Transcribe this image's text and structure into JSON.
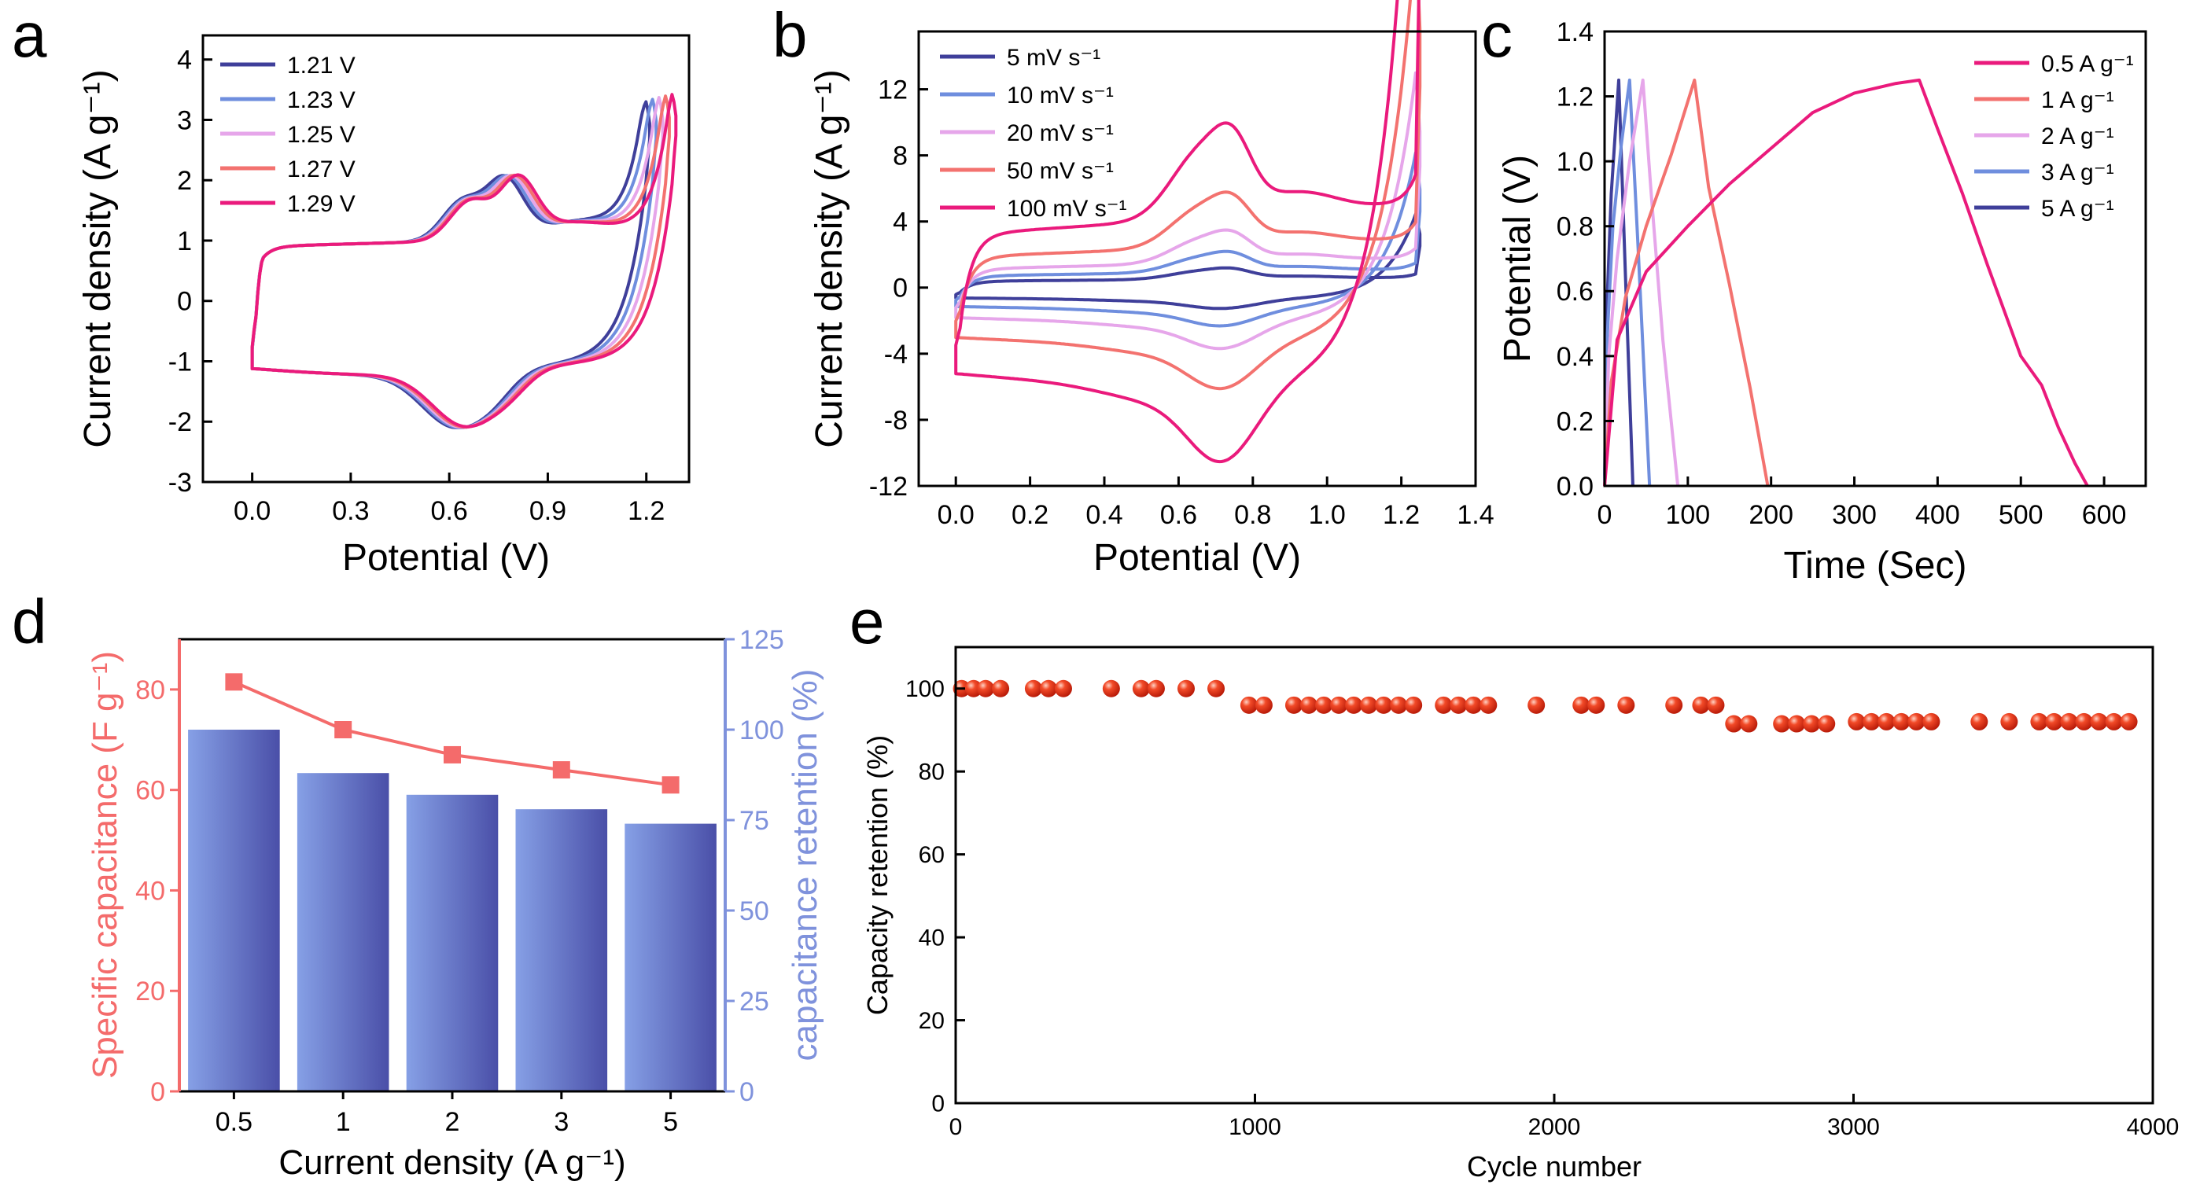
{
  "panel_labels": [
    "a",
    "b",
    "c",
    "d",
    "e"
  ],
  "colors": {
    "navy": "#3f3f9a",
    "blue": "#6f8ede",
    "lilac": "#e6a6ea",
    "salmon": "#f3726f",
    "magenta": "#ea1a7c",
    "bar_light": "#7e98e0",
    "bar_dark": "#4a4fa8",
    "cap_red": "#f46b6b",
    "ret_blue": "#7f92dc",
    "ball": "#e83a1e"
  },
  "chart_data": [
    {
      "id": "a",
      "type": "line",
      "title": "",
      "xlabel": "Potential (V)",
      "ylabel": "Current density (A g⁻¹)",
      "xlim": [
        -0.15,
        1.33
      ],
      "ylim": [
        -3,
        4.4
      ],
      "xticks": [
        "0.0",
        "0.3",
        "0.6",
        "0.9",
        "1.2"
      ],
      "xtick_values": [
        0,
        0.3,
        0.6,
        0.9,
        1.2
      ],
      "yticks": [
        "-3",
        "-2",
        "-1",
        "0",
        "1",
        "2",
        "3",
        "4"
      ],
      "ytick_values": [
        -3,
        -2,
        -1,
        0,
        1,
        2,
        3,
        4
      ],
      "legend_position": "top-left",
      "series": [
        {
          "name": "1.21 V",
          "vmax": 1.21,
          "color": "#3f3f9a"
        },
        {
          "name": "1.23 V",
          "vmax": 1.23,
          "color": "#6f8ede"
        },
        {
          "name": "1.25 V",
          "vmax": 1.25,
          "color": "#e6a6ea"
        },
        {
          "name": "1.27 V",
          "vmax": 1.27,
          "color": "#f3726f"
        },
        {
          "name": "1.29 V",
          "vmax": 1.29,
          "color": "#ea1a7c"
        }
      ]
    },
    {
      "id": "b",
      "type": "line",
      "title": "",
      "xlabel": "Potential (V)",
      "ylabel": "Current density (A g⁻¹)",
      "xlim": [
        -0.1,
        1.4
      ],
      "ylim": [
        -12,
        15.5
      ],
      "xticks": [
        "0.0",
        "0.2",
        "0.4",
        "0.6",
        "0.8",
        "1.0",
        "1.2",
        "1.4"
      ],
      "xtick_values": [
        0,
        0.2,
        0.4,
        0.6,
        0.8,
        1.0,
        1.2,
        1.4
      ],
      "yticks": [
        "-12",
        "-8",
        "-4",
        "0",
        "4",
        "8",
        "12"
      ],
      "ytick_values": [
        -12,
        -8,
        -4,
        0,
        4,
        8,
        12
      ],
      "legend_position": "top-left",
      "series": [
        {
          "name": "5 mV s⁻¹",
          "scale": 0.12,
          "color": "#3f3f9a"
        },
        {
          "name": "10 mV s⁻¹",
          "scale": 0.22,
          "color": "#6f8ede"
        },
        {
          "name": "20 mV s⁻¹",
          "scale": 0.35,
          "color": "#e6a6ea"
        },
        {
          "name": "50 mV s⁻¹",
          "scale": 0.58,
          "color": "#f3726f"
        },
        {
          "name": "100 mV s⁻¹",
          "scale": 1.0,
          "color": "#ea1a7c"
        }
      ]
    },
    {
      "id": "c",
      "type": "line",
      "title": "",
      "xlabel": "Time (Sec)",
      "ylabel": "Potential (V)",
      "xlim": [
        0,
        650
      ],
      "ylim": [
        0,
        1.4
      ],
      "xticks": [
        "0",
        "100",
        "200",
        "300",
        "400",
        "500",
        "600"
      ],
      "xtick_values": [
        0,
        100,
        200,
        300,
        400,
        500,
        600
      ],
      "yticks": [
        "0.0",
        "0.2",
        "0.4",
        "0.6",
        "0.8",
        "1.0",
        "1.2",
        "1.4"
      ],
      "ytick_values": [
        0,
        0.2,
        0.4,
        0.6,
        0.8,
        1.0,
        1.2,
        1.4
      ],
      "legend_position": "top-right",
      "series": [
        {
          "name": "0.5 A g⁻¹",
          "color": "#ea1a7c",
          "x": [
            0,
            15,
            50,
            100,
            150,
            200,
            250,
            300,
            350,
            378,
            400,
            430,
            460,
            500,
            525,
            545,
            565,
            580
          ],
          "y": [
            0,
            0.45,
            0.66,
            0.8,
            0.93,
            1.04,
            1.15,
            1.21,
            1.24,
            1.25,
            1.1,
            0.9,
            0.68,
            0.4,
            0.31,
            0.18,
            0.07,
            0
          ]
        },
        {
          "name": "1 A g⁻¹",
          "color": "#f3726f",
          "x": [
            0,
            8,
            25,
            50,
            80,
            108,
            125,
            150,
            175,
            196
          ],
          "y": [
            0,
            0.32,
            0.58,
            0.8,
            1.02,
            1.25,
            0.92,
            0.62,
            0.3,
            0
          ]
        },
        {
          "name": "2 A g⁻¹",
          "color": "#e6a6ea",
          "x": [
            0,
            5,
            15,
            30,
            46,
            56,
            70,
            88
          ],
          "y": [
            0,
            0.4,
            0.7,
            1.0,
            1.25,
            0.9,
            0.45,
            0
          ]
        },
        {
          "name": "3 A g⁻¹",
          "color": "#6f8ede",
          "x": [
            0,
            3,
            10,
            20,
            30,
            40,
            54
          ],
          "y": [
            0,
            0.45,
            0.8,
            1.05,
            1.25,
            0.75,
            0
          ]
        },
        {
          "name": "5 A g⁻¹",
          "color": "#3f3f9a",
          "x": [
            0,
            2,
            8,
            17,
            25,
            34
          ],
          "y": [
            0,
            0.5,
            0.9,
            1.25,
            0.65,
            0
          ]
        }
      ]
    },
    {
      "id": "d",
      "type": "bar",
      "title": "",
      "xlabel": "Current density (A g⁻¹)",
      "ylabel": "Specific capacitance (F g⁻¹)",
      "y2label": "capacitance retention (%)",
      "categories": [
        "0.5",
        "1",
        "2",
        "3",
        "5"
      ],
      "ylim": [
        0,
        90
      ],
      "y2lim": [
        0,
        125
      ],
      "yticks": [
        "0",
        "20",
        "40",
        "60",
        "80"
      ],
      "ytick_values": [
        0,
        20,
        40,
        60,
        80
      ],
      "y2ticks": [
        "0",
        "25",
        "50",
        "75",
        "100",
        "125"
      ],
      "y2tick_values": [
        0,
        25,
        50,
        75,
        100,
        125
      ],
      "series": [
        {
          "name": "Specific capacitance",
          "type": "line",
          "axis": "left",
          "values": [
            81.5,
            72,
            67,
            64,
            61
          ]
        },
        {
          "name": "Capacitance retention",
          "type": "bar",
          "axis": "right",
          "values": [
            100,
            88,
            82,
            78,
            74
          ]
        }
      ]
    },
    {
      "id": "e",
      "type": "scatter",
      "title": "",
      "xlabel": "Cycle number",
      "ylabel": "Capacity retention (%)",
      "xlim": [
        0,
        4000
      ],
      "ylim": [
        0,
        110
      ],
      "xticks": [
        "0",
        "1000",
        "2000",
        "3000",
        "4000"
      ],
      "xtick_values": [
        0,
        1000,
        2000,
        3000,
        4000
      ],
      "yticks": [
        "0",
        "20",
        "40",
        "60",
        "80",
        "100"
      ],
      "ytick_values": [
        0,
        20,
        40,
        60,
        80,
        100
      ],
      "x": [
        20,
        60,
        100,
        150,
        260,
        310,
        360,
        520,
        620,
        670,
        770,
        870,
        980,
        1030,
        1130,
        1180,
        1230,
        1280,
        1330,
        1380,
        1430,
        1480,
        1530,
        1630,
        1680,
        1730,
        1780,
        1940,
        2090,
        2140,
        2240,
        2400,
        2490,
        2540,
        2600,
        2650,
        2760,
        2810,
        2860,
        2910,
        3010,
        3060,
        3110,
        3160,
        3210,
        3260,
        3420,
        3520,
        3620,
        3670,
        3720,
        3770,
        3820,
        3870,
        3920
      ],
      "y": [
        100,
        100,
        100,
        100,
        100,
        100,
        100,
        100,
        100,
        100,
        100,
        100,
        96,
        96,
        96,
        96,
        96,
        96,
        96,
        96,
        96,
        96,
        96,
        96,
        96,
        96,
        96,
        96,
        96,
        96,
        96,
        96,
        96,
        96,
        91.5,
        91.5,
        91.5,
        91.5,
        91.5,
        91.5,
        92,
        92,
        92,
        92,
        92,
        92,
        92,
        92,
        92,
        92,
        92,
        92,
        92,
        92,
        92
      ]
    }
  ]
}
